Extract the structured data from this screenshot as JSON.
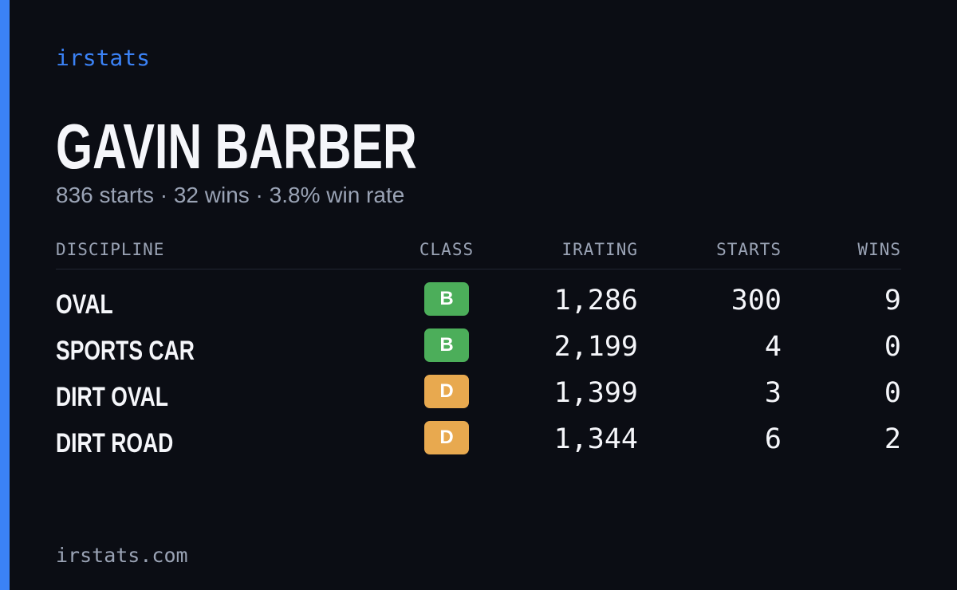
{
  "brand": "irstats",
  "driver": {
    "name": "GAVIN BARBER",
    "summary": "836 starts · 32 wins · 3.8% win rate"
  },
  "table": {
    "headers": [
      "DISCIPLINE",
      "CLASS",
      "IRATING",
      "STARTS",
      "WINS"
    ],
    "rows": [
      {
        "discipline": "OVAL",
        "class": "B",
        "class_color": "#4cae5a",
        "irating": "1,286",
        "starts": "300",
        "wins": "9"
      },
      {
        "discipline": "SPORTS CAR",
        "class": "B",
        "class_color": "#4cae5a",
        "irating": "2,199",
        "starts": "4",
        "wins": "0"
      },
      {
        "discipline": "DIRT OVAL",
        "class": "D",
        "class_color": "#e8a94f",
        "irating": "1,399",
        "starts": "3",
        "wins": "0"
      },
      {
        "discipline": "DIRT ROAD",
        "class": "D",
        "class_color": "#e8a94f",
        "irating": "1,344",
        "starts": "6",
        "wins": "2"
      }
    ]
  },
  "footer": "irstats.com"
}
